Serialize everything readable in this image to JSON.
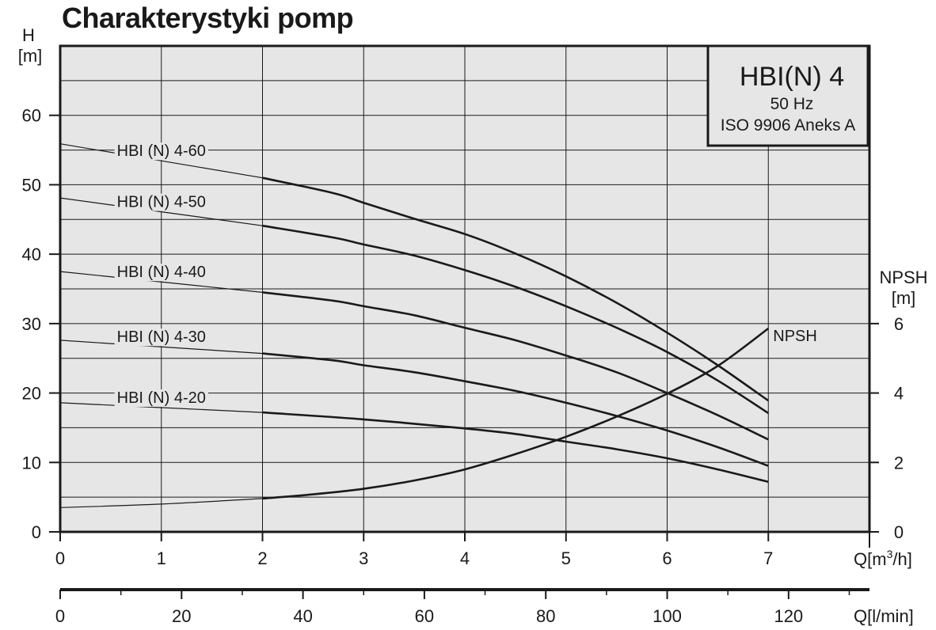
{
  "page_title": "Charakterystyki pomp",
  "info_box": {
    "model": "HBI(N) 4",
    "frequency": "50 Hz",
    "standard": "ISO 9906 Aneks  A"
  },
  "colors": {
    "plot_background": "#e6e6e6",
    "grid": "#1a1a1a",
    "curve": "#1a1a1a"
  },
  "chart_data": {
    "type": "line",
    "title": "Charakterystyki pomp",
    "xlabel": "Q[m³/h]",
    "xlabel_parts": {
      "main": "Q[m",
      "sup": "3",
      "tail": "/h]"
    },
    "x2label": "Q[l/min]",
    "ylabel": {
      "line1": "H",
      "line2": "[m]"
    },
    "y2label": {
      "line1": "NPSH",
      "line2": "[m]"
    },
    "xlim": [
      0,
      8
    ],
    "ylim": [
      0,
      70
    ],
    "x2lim": [
      0,
      133.33
    ],
    "y2lim": [
      0,
      14
    ],
    "x_ticks": [
      "0",
      "1",
      "2",
      "3",
      "4",
      "5",
      "6",
      "7"
    ],
    "y_ticks": [
      "0",
      "10",
      "20",
      "30",
      "40",
      "50",
      "60"
    ],
    "y2_ticks": [
      "0",
      "2",
      "4",
      "6"
    ],
    "x2_ticks": [
      "0",
      "20",
      "40",
      "60",
      "80",
      "100",
      "120"
    ],
    "grid": true,
    "series": [
      {
        "name": "HBI (N) 4-60",
        "axis": "H",
        "x": [
          0,
          2,
          2.7,
          3,
          3.5,
          4,
          4.5,
          5,
          5.5,
          6,
          6.5,
          7
        ],
        "y": [
          55.9,
          51.0,
          48.8,
          47.4,
          45.1,
          42.9,
          40.1,
          36.8,
          33.0,
          28.7,
          24.0,
          18.9
        ]
      },
      {
        "name": "HBI (N) 4-50",
        "axis": "H",
        "x": [
          0,
          2,
          2.7,
          3,
          3.5,
          4,
          4.5,
          5,
          5.5,
          6,
          6.5,
          7
        ],
        "y": [
          48.1,
          44.1,
          42.4,
          41.4,
          39.8,
          37.7,
          35.3,
          32.5,
          29.4,
          25.9,
          21.8,
          17.1
        ]
      },
      {
        "name": "HBI (N) 4-40",
        "axis": "H",
        "x": [
          0,
          2,
          2.7,
          3,
          3.5,
          4,
          4.5,
          5,
          5.5,
          6,
          6.5,
          7
        ],
        "y": [
          37.5,
          34.5,
          33.3,
          32.5,
          31.2,
          29.4,
          27.6,
          25.4,
          23.0,
          20.0,
          16.8,
          13.3
        ]
      },
      {
        "name": "HBI (N) 4-30",
        "axis": "H",
        "x": [
          0,
          2,
          2.7,
          3,
          3.5,
          4,
          4.5,
          5,
          5.5,
          6,
          6.5,
          7
        ],
        "y": [
          27.6,
          25.7,
          24.7,
          24.0,
          23.0,
          21.7,
          20.3,
          18.6,
          16.7,
          14.6,
          12.2,
          9.5
        ]
      },
      {
        "name": "HBI (N) 4-20",
        "axis": "H",
        "x": [
          0,
          2,
          3,
          4,
          4.5,
          5,
          5.5,
          6,
          6.5,
          7
        ],
        "y": [
          18.6,
          17.2,
          16.2,
          14.9,
          14.1,
          13.0,
          11.9,
          10.6,
          9.0,
          7.2
        ]
      },
      {
        "name": "NPSH",
        "axis": "NPSH",
        "x": [
          0,
          1,
          2,
          2.5,
          3,
          3.5,
          4,
          4.5,
          5,
          5.5,
          6,
          6.5,
          7
        ],
        "y": [
          0.7,
          0.8,
          0.96,
          1.08,
          1.24,
          1.48,
          1.8,
          2.24,
          2.74,
          3.32,
          3.98,
          4.78,
          5.86
        ]
      }
    ]
  }
}
